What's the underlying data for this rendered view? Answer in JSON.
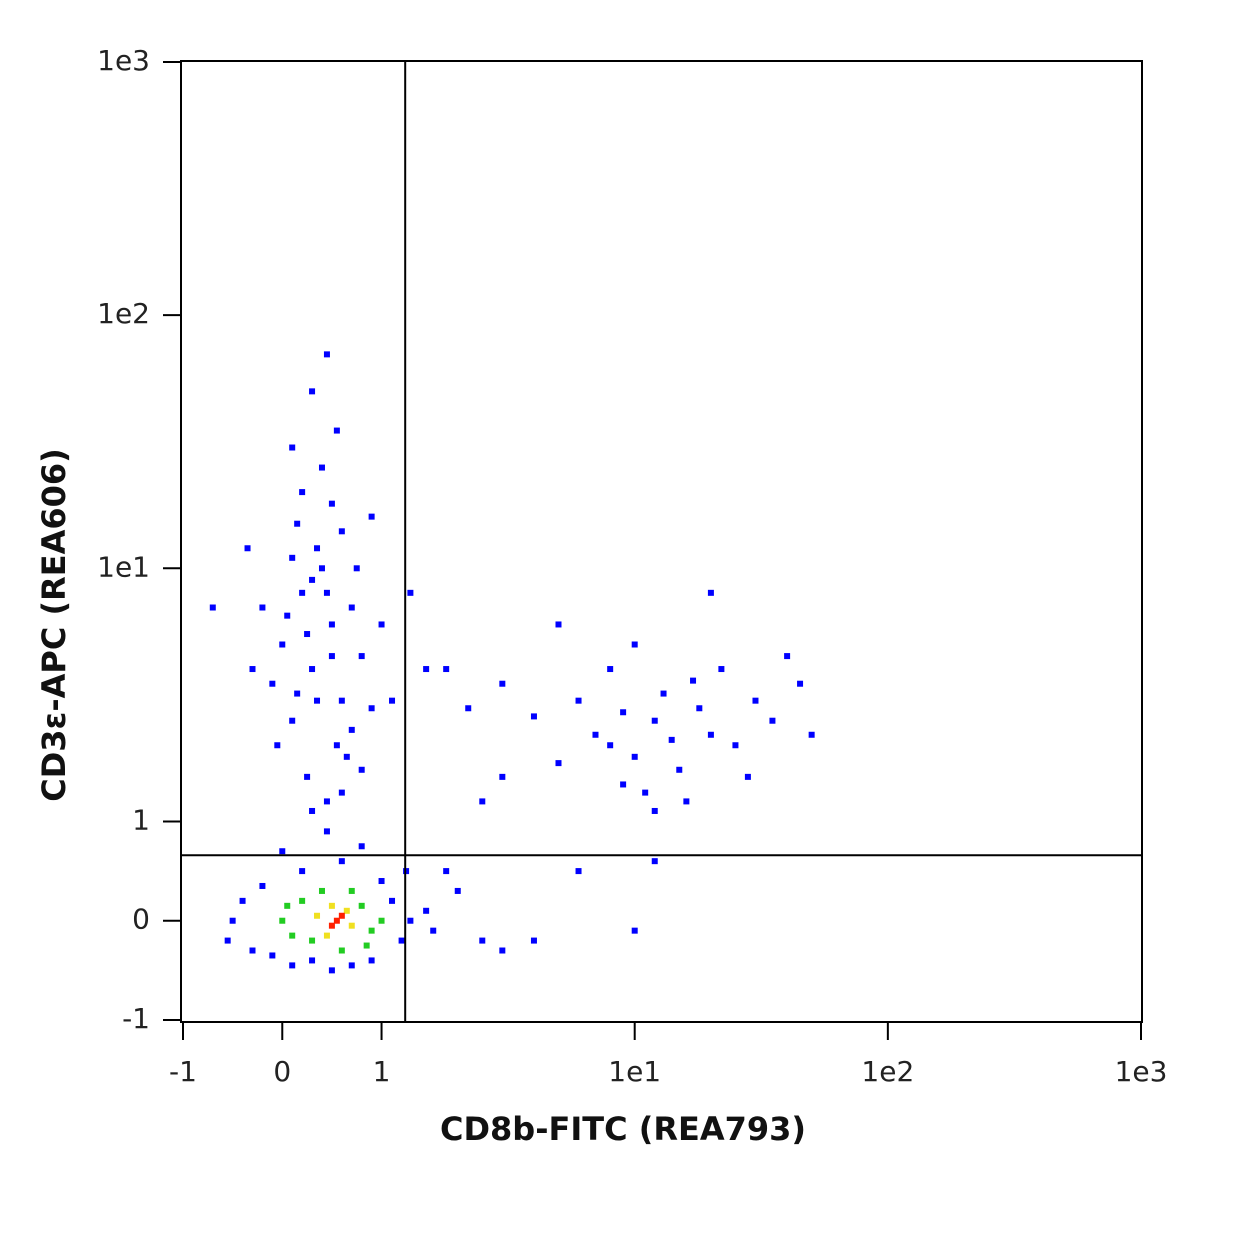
{
  "chart_data": {
    "type": "scatter",
    "xlabel": "CD8b-FITC (REA793)",
    "ylabel": "CD3ε-APC (REA606)",
    "xscale": "logicle",
    "yscale": "logicle",
    "xlim": [
      -1,
      1000
    ],
    "ylim": [
      -1,
      1000
    ],
    "xticks": [
      -1,
      0,
      1,
      {
        "value": 10,
        "label": "1e1"
      },
      {
        "value": 100,
        "label": "1e2"
      },
      {
        "value": 1000,
        "label": "1e3"
      }
    ],
    "yticks": [
      -1,
      0,
      1,
      {
        "value": 10,
        "label": "1e1"
      },
      {
        "value": 100,
        "label": "1e2"
      },
      {
        "value": 1000,
        "label": "1e3"
      }
    ],
    "gates": {
      "x": 1.24,
      "y": 0.66
    },
    "series": [
      {
        "color": "#0000ff",
        "x": [
          0.1,
          0.3,
          0.5,
          0.2,
          0.4,
          0.6,
          0.0,
          0.7,
          0.35,
          0.15,
          0.55,
          0.8,
          -0.1,
          0.25,
          0.45,
          0.65,
          0.9,
          0.05,
          0.3,
          0.5,
          0.4,
          0.2,
          0.6,
          -0.2,
          -0.3,
          1.0,
          1.1,
          0.75,
          0.1,
          0.35,
          0.5,
          0.3,
          0.6,
          0.8,
          -0.05,
          0.15,
          0.45,
          0.25,
          0.7,
          0.55,
          0.3,
          0.45,
          -0.35,
          -0.7,
          1.3,
          1.5,
          0.9,
          0.1,
          8,
          10,
          12,
          15,
          20,
          6,
          9,
          13,
          18,
          25,
          11,
          7,
          30,
          14,
          5,
          16,
          22,
          35,
          45,
          10,
          4,
          3,
          2.2,
          12,
          8,
          28,
          17,
          9,
          50,
          40,
          20,
          5,
          3,
          1.8,
          2.5,
          -0.5,
          -0.4,
          -0.3,
          1.3,
          1.5,
          1.2,
          0.1,
          0.5,
          0.9,
          0.2,
          0.6,
          1.0,
          -0.2,
          1.6,
          2,
          2.5,
          0.0,
          0.8,
          -0.55,
          0.3,
          1.1,
          1.25,
          1.8,
          0.45,
          0.7,
          -0.1,
          4,
          6,
          10,
          3,
          12
        ],
        "values": [
          2.5,
          4,
          6,
          8,
          10,
          3,
          5,
          7,
          12,
          15,
          2,
          4.5,
          3.5,
          1.5,
          1.2,
          1.8,
          2.8,
          6.5,
          9,
          18,
          25,
          20,
          14,
          7,
          4,
          6,
          3,
          10,
          11,
          3,
          4.5,
          1.1,
          1.3,
          1.6,
          2,
          3.2,
          8,
          5.5,
          2.3,
          35,
          50,
          70,
          12,
          7,
          8,
          4,
          16,
          30,
          2,
          1.8,
          2.5,
          1.6,
          2.2,
          3,
          1.4,
          3.2,
          2.8,
          2,
          1.3,
          2.2,
          3,
          2.1,
          1.7,
          1.2,
          4,
          2.5,
          3.5,
          5,
          2.6,
          3.5,
          2.8,
          1.1,
          4,
          1.5,
          3.6,
          2.7,
          2.2,
          4.5,
          8,
          6,
          1.5,
          4,
          1.2,
          0,
          0.2,
          -0.3,
          0,
          0.1,
          -0.2,
          -0.45,
          -0.5,
          -0.4,
          0.5,
          0.6,
          0.4,
          0.35,
          -0.1,
          0.3,
          -0.2,
          0.7,
          0.75,
          -0.2,
          -0.4,
          0.2,
          0.5,
          0.5,
          0.9,
          -0.45,
          -0.35,
          -0.2,
          0.5,
          -0.1,
          -0.3,
          0.6
        ]
      },
      {
        "color": "#22cc22",
        "x": [
          0,
          0.2,
          0.3,
          0.8,
          0.9,
          0.1,
          0.7,
          0.4,
          0.6,
          1.0,
          0.05,
          0.85
        ],
        "values": [
          0,
          0.2,
          -0.2,
          0.15,
          -0.1,
          -0.15,
          0.3,
          0.3,
          -0.3,
          0,
          0.15,
          -0.25
        ]
      },
      {
        "color": "#f0e020",
        "x": [
          0.35,
          0.7,
          0.5,
          0.45,
          0.65
        ],
        "values": [
          0.05,
          -0.05,
          0.15,
          -0.15,
          0.1
        ]
      },
      {
        "color": "#ff2000",
        "x": [
          0.55,
          0.5,
          0.6
        ],
        "values": [
          0,
          -0.05,
          0.05
        ]
      }
    ]
  }
}
